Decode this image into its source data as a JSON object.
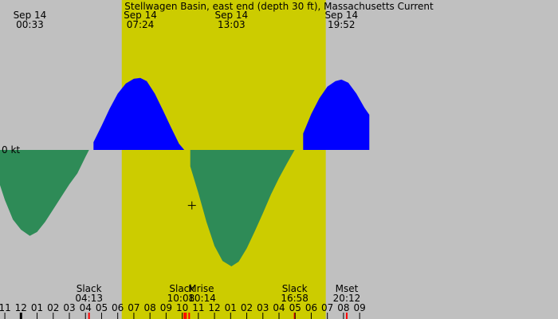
{
  "chart_data": {
    "type": "area",
    "title": "Stellwagen Basin, east end (depth 30 ft), Massachusetts Current",
    "y_unit": "kt",
    "zero_label": "0 kt",
    "x_range_hours": [
      -1.3,
      33.3
    ],
    "y_range": [
      -1.5,
      1.0
    ],
    "daylight_hours": [
      6.25,
      18.9
    ],
    "curve": {
      "hours": [
        -1.3,
        -1.0,
        -0.5,
        0.0,
        0.55,
        1.0,
        1.5,
        2.0,
        2.5,
        3.0,
        3.5,
        4.0,
        4.22,
        4.5,
        5.0,
        5.5,
        6.0,
        6.5,
        7.0,
        7.4,
        7.8,
        8.3,
        8.8,
        9.3,
        9.8,
        10.13,
        10.5,
        11.0,
        11.5,
        12.0,
        12.5,
        13.05,
        13.5,
        14.0,
        14.5,
        15.0,
        15.5,
        16.0,
        16.5,
        16.97,
        17.5,
        18.0,
        18.5,
        19.0,
        19.5,
        19.87,
        20.3,
        20.8,
        21.3,
        21.6
      ],
      "speeds": [
        -0.45,
        -0.64,
        -0.89,
        -1.02,
        -1.1,
        -1.05,
        -0.92,
        -0.76,
        -0.6,
        -0.44,
        -0.3,
        -0.09,
        0.0,
        0.1,
        0.31,
        0.53,
        0.72,
        0.85,
        0.91,
        0.92,
        0.88,
        0.72,
        0.51,
        0.29,
        0.08,
        0.0,
        -0.21,
        -0.55,
        -0.92,
        -1.23,
        -1.42,
        -1.49,
        -1.43,
        -1.26,
        -1.04,
        -0.81,
        -0.57,
        -0.36,
        -0.17,
        0.0,
        0.21,
        0.46,
        0.66,
        0.81,
        0.88,
        0.9,
        0.86,
        0.72,
        0.54,
        0.45
      ],
      "flood_color": "#0000ff",
      "ebb_color": "#2e8b57"
    },
    "top_labels": [
      {
        "date": "Sep 14",
        "time": "00:33",
        "hour": 0.55
      },
      {
        "date": "Sep 14",
        "time": "07:24",
        "hour": 7.4
      },
      {
        "date": "Sep 14",
        "time": "13:03",
        "hour": 13.05
      },
      {
        "date": "Sep 14",
        "time": "19:52",
        "hour": 19.87
      }
    ],
    "events": [
      {
        "label": "Slack",
        "time": "04:13",
        "hour": 4.22,
        "marker_color": "#ff0000",
        "align": "middle"
      },
      {
        "label": "Slack",
        "time": "10:08",
        "hour": 10.13,
        "marker_color": "#ff0000",
        "align": "end"
      },
      {
        "label": "Mrise",
        "time": "10:14",
        "hour": 10.23,
        "marker_color": "#ff0000",
        "align": "start"
      },
      {
        "label": "Slack",
        "time": "16:58",
        "hour": 16.97,
        "marker_color": "#ff0000",
        "align": "middle"
      },
      {
        "label": "Mset",
        "time": "20:12",
        "hour": 20.2,
        "marker_color": "#ff0000",
        "align": "middle"
      }
    ],
    "extra_markers": [
      {
        "hour": 10.43,
        "color": "#ff0000"
      },
      {
        "hour": 0.0,
        "color": "#000000"
      }
    ],
    "x_ticks": [
      {
        "hour": -1,
        "label": "11"
      },
      {
        "hour": 0,
        "label": "12"
      },
      {
        "hour": 1,
        "label": "01"
      },
      {
        "hour": 2,
        "label": "02"
      },
      {
        "hour": 3,
        "label": "03"
      },
      {
        "hour": 4,
        "label": "04"
      },
      {
        "hour": 5,
        "label": "05"
      },
      {
        "hour": 6,
        "label": "06"
      },
      {
        "hour": 7,
        "label": "07"
      },
      {
        "hour": 8,
        "label": "08"
      },
      {
        "hour": 9,
        "label": "09"
      },
      {
        "hour": 10,
        "label": "10"
      },
      {
        "hour": 11,
        "label": "11"
      },
      {
        "hour": 12,
        "label": "12"
      },
      {
        "hour": 13,
        "label": "01"
      },
      {
        "hour": 14,
        "label": "02"
      },
      {
        "hour": 15,
        "label": "03"
      },
      {
        "hour": 16,
        "label": "04"
      },
      {
        "hour": 17,
        "label": "05"
      },
      {
        "hour": 18,
        "label": "06"
      },
      {
        "hour": 19,
        "label": "07"
      },
      {
        "hour": 20,
        "label": "08"
      },
      {
        "hour": 21,
        "label": "09"
      }
    ],
    "crosshair": {
      "hour": 10.6,
      "speed": -0.71
    },
    "colors": {
      "night": "#c0c0c0",
      "day": "#cccc00",
      "text": "#000000"
    },
    "grid": false,
    "legend": "none"
  }
}
